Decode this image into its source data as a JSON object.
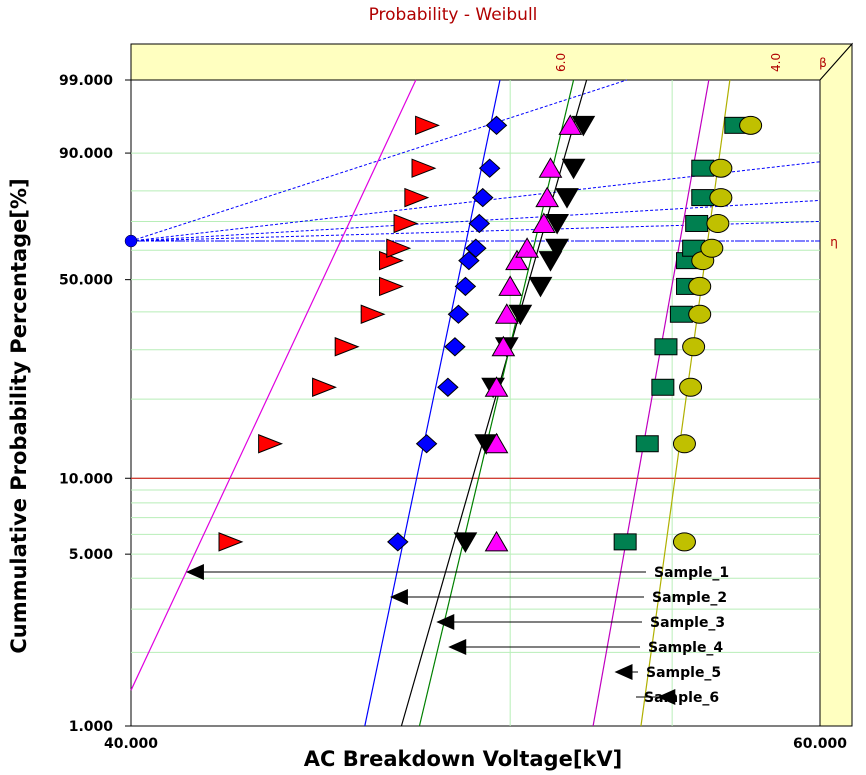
{
  "chart_data": {
    "type": "scatter",
    "title": "Probability - Weibull",
    "xlabel": "AC Breakdown Voltage[kV]",
    "ylabel": "Cummulative Probability Percentage[%]",
    "x_scale": "log",
    "y_scale": "weibull",
    "xlim": [
      40.0,
      60.0
    ],
    "ylim": [
      1.0,
      99.0
    ],
    "x_ticks": [
      "40.000",
      "60.000"
    ],
    "y_ticks": [
      {
        "value": 99.0,
        "label": "99.000"
      },
      {
        "value": 90.0,
        "label": "90.000"
      },
      {
        "value": 50.0,
        "label": "50.000"
      },
      {
        "value": 10.0,
        "label": "10.000"
      },
      {
        "value": 5.0,
        "label": "5.000"
      },
      {
        "value": 1.0,
        "label": "1.000"
      }
    ],
    "beta_scale": {
      "symbol": "β",
      "ticks": [
        {
          "value": 6.0,
          "label": "6.0"
        },
        {
          "value": 4.0,
          "label": "4.0"
        }
      ]
    },
    "eta_marker": {
      "symbol": "η",
      "y": 63.2
    },
    "grid": true,
    "legend": "arrow labels at bottom-right",
    "colors": {
      "background": "#ffffff",
      "plot_bg": "#ffffff",
      "frame_bg": "#ffffc0",
      "grid": "#b8eeb8",
      "title": "#b00000",
      "ref_line": "#d00000",
      "pivot": "#0000ff"
    },
    "series": [
      {
        "name": "Sample_1",
        "marker": "triangle-right",
        "color": "#ff0000",
        "line": "#e000e0",
        "x": [
          42.4,
          43.4,
          44.8,
          45.4,
          46.1,
          46.6,
          46.6,
          46.8,
          47.0,
          47.3,
          47.5,
          47.6
        ],
        "y": [
          5.6,
          13.6,
          22.1,
          30.7,
          39.3,
          47.8,
          56.4,
          60.7,
          69.3,
          77.9,
          86.4,
          95.0
        ],
        "fit": [
          [
            40.0,
            1.4
          ],
          [
            47.3,
            99.0
          ]
        ]
      },
      {
        "name": "Sample_2",
        "marker": "diamond",
        "color": "#0000ff",
        "line": "#0000ff",
        "x": [
          46.8,
          47.6,
          48.2,
          48.4,
          48.5,
          48.7,
          48.8,
          49.0,
          49.1,
          49.2,
          49.4,
          49.6
        ],
        "y": [
          5.6,
          13.6,
          22.1,
          30.7,
          39.3,
          47.8,
          56.4,
          60.7,
          69.3,
          77.9,
          86.4,
          95.0
        ],
        "fit": [
          [
            45.9,
            1.0
          ],
          [
            49.7,
            99.0
          ]
        ]
      },
      {
        "name": "Sample_3",
        "marker": "triangle-down",
        "color": "#000000",
        "line": "#000000",
        "x": [
          48.7,
          49.3,
          49.5,
          49.9,
          50.3,
          50.9,
          51.2,
          51.4,
          51.4,
          51.7,
          51.9,
          52.2
        ],
        "y": [
          5.6,
          13.6,
          22.1,
          30.7,
          39.3,
          47.8,
          56.4,
          60.7,
          69.3,
          77.9,
          86.4,
          95.0
        ],
        "fit": [
          [
            46.9,
            1.0
          ],
          [
            52.3,
            99.0
          ]
        ]
      },
      {
        "name": "Sample_4",
        "marker": "triangle-up",
        "color": "#ff00ff",
        "line": "#008000",
        "x": [
          49.6,
          49.6,
          49.6,
          49.8,
          49.9,
          50.0,
          50.2,
          50.5,
          51.0,
          51.1,
          51.2,
          51.8
        ],
        "y": [
          5.6,
          13.6,
          22.1,
          30.7,
          39.3,
          47.8,
          56.4,
          60.7,
          69.3,
          77.9,
          86.4,
          95.0
        ],
        "fit": [
          [
            47.4,
            1.0
          ],
          [
            51.9,
            99.0
          ]
        ]
      },
      {
        "name": "Sample_5",
        "marker": "square",
        "color": "#008050",
        "line": "#c000c0",
        "x": [
          53.5,
          54.2,
          54.7,
          54.8,
          55.3,
          55.5,
          55.5,
          55.7,
          55.8,
          56.0,
          56.0,
          57.1
        ],
        "y": [
          5.6,
          13.6,
          22.1,
          30.7,
          39.3,
          47.8,
          56.4,
          60.7,
          69.3,
          77.9,
          86.4,
          95.0
        ],
        "fit": [
          [
            52.5,
            1.0
          ],
          [
            56.2,
            99.0
          ]
        ]
      },
      {
        "name": "Sample_6",
        "marker": "circle",
        "color": "#c0c000",
        "line": "#b0b000",
        "x": [
          55.4,
          55.4,
          55.6,
          55.7,
          55.9,
          55.9,
          56.0,
          56.3,
          56.5,
          56.6,
          56.6,
          57.6
        ],
        "y": [
          5.6,
          13.6,
          22.1,
          30.7,
          39.3,
          47.8,
          56.4,
          60.7,
          69.3,
          77.9,
          86.4,
          95.0
        ],
        "fit": [
          [
            54.0,
            1.0
          ],
          [
            56.9,
            99.0
          ]
        ]
      }
    ],
    "beta_lines_to": [
      {
        "to": "top",
        "x": 52.0
      },
      {
        "to": "right",
        "y": 88.0
      },
      {
        "to": "right",
        "y": 77.0
      },
      {
        "to": "right",
        "y": 70.0
      },
      {
        "to": "right",
        "y": 63.2
      }
    ]
  }
}
